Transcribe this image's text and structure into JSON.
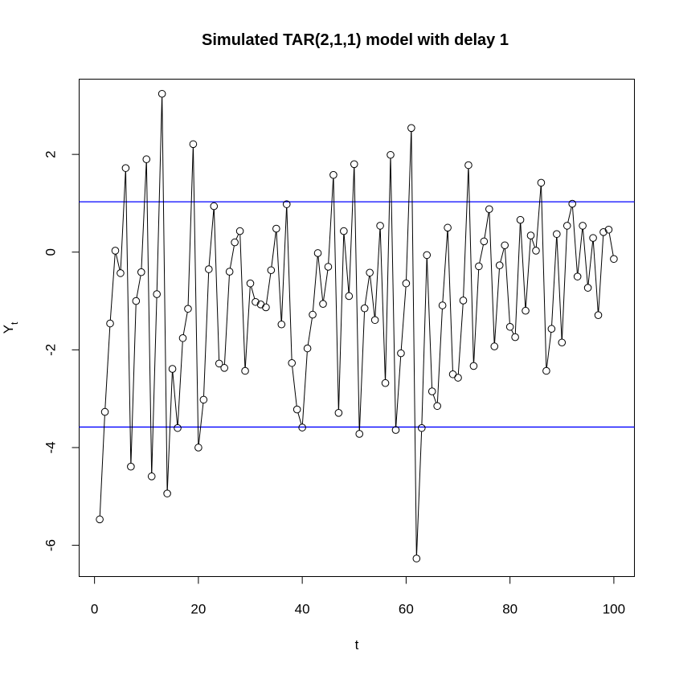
{
  "chart_data": {
    "type": "line",
    "title": "Simulated TAR(2,1,1) model with delay 1",
    "xlabel": "t",
    "ylabel": "Y",
    "ylabel_subscript": "t",
    "xlim": [
      -2.96,
      103.96
    ],
    "ylim": [
      -6.64,
      3.54
    ],
    "xticks": [
      0,
      20,
      40,
      60,
      80,
      100
    ],
    "yticks": [
      -6,
      -4,
      -2,
      0,
      2
    ],
    "threshold_lines": [
      1.03,
      -3.58
    ],
    "threshold_color": "#0000ff",
    "line_color": "#000000",
    "x": [
      1,
      2,
      3,
      4,
      5,
      6,
      7,
      8,
      9,
      10,
      11,
      12,
      13,
      14,
      15,
      16,
      17,
      18,
      19,
      20,
      21,
      22,
      23,
      24,
      25,
      26,
      27,
      28,
      29,
      30,
      31,
      32,
      33,
      34,
      35,
      36,
      37,
      38,
      39,
      40,
      41,
      42,
      43,
      44,
      45,
      46,
      47,
      48,
      49,
      50,
      51,
      52,
      53,
      54,
      55,
      56,
      57,
      58,
      59,
      60,
      61,
      62,
      63,
      64,
      65,
      66,
      67,
      68,
      69,
      70,
      71,
      72,
      73,
      74,
      75,
      76,
      77,
      78,
      79,
      80,
      81,
      82,
      83,
      84,
      85,
      86,
      87,
      88,
      89,
      90,
      91,
      92,
      93,
      94,
      95,
      96,
      97,
      98,
      99,
      100
    ],
    "values": [
      -5.47,
      -3.27,
      -1.46,
      0.03,
      -0.43,
      1.72,
      -4.39,
      -1.0,
      -0.41,
      1.9,
      -4.59,
      -0.86,
      3.24,
      -4.94,
      -2.39,
      -3.6,
      -1.76,
      -1.16,
      2.21,
      -4.0,
      -3.02,
      -0.35,
      0.94,
      -2.28,
      -2.37,
      -0.4,
      0.2,
      0.43,
      -2.43,
      -0.64,
      -1.02,
      -1.07,
      -1.13,
      -0.37,
      0.48,
      -1.48,
      0.98,
      -2.27,
      -3.22,
      -3.59,
      -1.97,
      -1.28,
      -0.02,
      -1.06,
      -0.3,
      1.58,
      -3.29,
      0.43,
      -0.9,
      1.8,
      -3.72,
      -1.15,
      -0.42,
      -1.39,
      0.54,
      -2.68,
      1.99,
      -3.64,
      -2.07,
      -0.64,
      2.54,
      -6.27,
      -3.6,
      -0.06,
      -2.85,
      -3.15,
      -1.09,
      0.5,
      -2.5,
      -2.57,
      -0.99,
      1.78,
      -2.33,
      -0.29,
      0.22,
      0.88,
      -1.93,
      -0.27,
      0.14,
      -1.53,
      -1.74,
      0.66,
      -1.2,
      0.34,
      0.03,
      1.42,
      -2.43,
      -1.57,
      0.37,
      -1.85,
      0.54,
      0.99,
      -0.5,
      0.54,
      -0.73,
      0.29,
      -1.29,
      0.41,
      0.46,
      -0.14
    ]
  }
}
